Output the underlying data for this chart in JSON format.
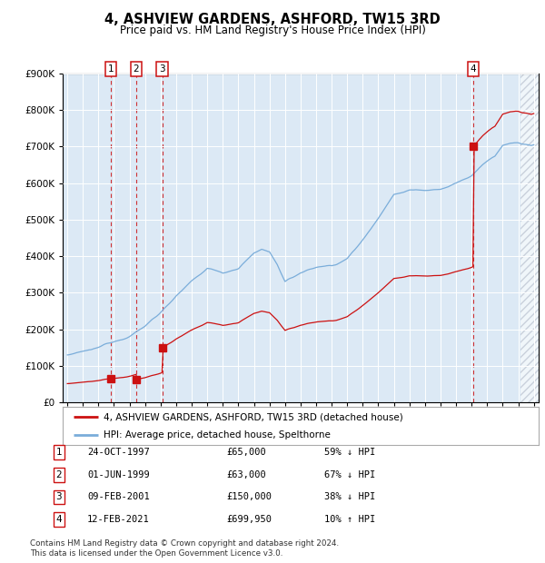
{
  "title": "4, ASHVIEW GARDENS, ASHFORD, TW15 3RD",
  "subtitle": "Price paid vs. HM Land Registry's House Price Index (HPI)",
  "hpi_color": "#7aadda",
  "price_color": "#cc1111",
  "bg_color": "#dce9f5",
  "ylim": [
    0,
    900000
  ],
  "yticks": [
    0,
    100000,
    200000,
    300000,
    400000,
    500000,
    600000,
    700000,
    800000,
    900000
  ],
  "ytick_labels": [
    "£0",
    "£100K",
    "£200K",
    "£300K",
    "£400K",
    "£500K",
    "£600K",
    "£700K",
    "£800K",
    "£900K"
  ],
  "xlim_start": 1994.7,
  "xlim_end": 2025.3,
  "hatch_start": 2024.17,
  "sales": [
    {
      "num": 1,
      "date": "24-OCT-1997",
      "year": 1997.81,
      "price": 65000,
      "pct": "59%",
      "dir": "↓"
    },
    {
      "num": 2,
      "date": "01-JUN-1999",
      "year": 1999.42,
      "price": 63000,
      "pct": "67%",
      "dir": "↓"
    },
    {
      "num": 3,
      "date": "09-FEB-2001",
      "year": 2001.11,
      "price": 150000,
      "pct": "38%",
      "dir": "↓"
    },
    {
      "num": 4,
      "date": "12-FEB-2021",
      "year": 2021.11,
      "price": 699950,
      "pct": "10%",
      "dir": "↑"
    }
  ],
  "legend_line1": "4, ASHVIEW GARDENS, ASHFORD, TW15 3RD (detached house)",
  "legend_line2": "HPI: Average price, detached house, Spelthorne",
  "footnote": "Contains HM Land Registry data © Crown copyright and database right 2024.\nThis data is licensed under the Open Government Licence v3.0."
}
